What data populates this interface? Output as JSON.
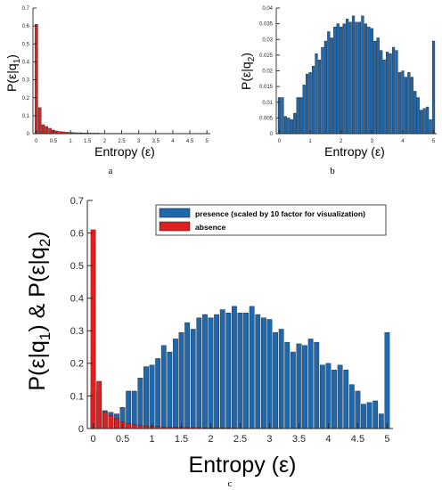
{
  "captions": [
    "a",
    "b",
    "c"
  ],
  "colors": {
    "presence": "#1f68ad",
    "absence": "#e02020",
    "axis": "#262626"
  },
  "chart_data": [
    {
      "type": "bar",
      "panel": "a",
      "xlabel": "Entropy (ε)",
      "ylabel": {
        "prefix": "P(ε|q",
        "sub": "1",
        "suffix": ")"
      },
      "xlim": [
        -0.1,
        5.1
      ],
      "ylim": [
        0,
        0.7
      ],
      "xticks": [
        0,
        0.5,
        1,
        1.5,
        2,
        2.5,
        3,
        3.5,
        4,
        4.5,
        5
      ],
      "xtick_labels": [
        "0",
        "0.5",
        "1",
        "1.5",
        "2",
        "2.5",
        "3",
        "3.5",
        "4",
        "4.5",
        "5"
      ],
      "yticks": [
        0,
        0.1,
        0.2,
        0.3,
        0.4,
        0.5,
        0.6,
        0.7
      ],
      "ytick_labels": [
        "0",
        "0.1",
        "0.2",
        "0.3",
        "0.4",
        "0.5",
        "0.6",
        "0.7"
      ],
      "series": [
        {
          "key": "absence",
          "x0": 0,
          "dx": 0.1,
          "values": [
            0.61,
            0.145,
            0.05,
            0.04,
            0.03,
            0.02,
            0.015,
            0.012,
            0.01,
            0.008,
            0.007,
            0.006,
            0.005,
            0.005,
            0.004,
            0.004,
            0.003,
            0.003,
            0.003,
            0.002,
            0.002,
            0.002,
            0.002,
            0.002,
            0.002,
            0.001,
            0.001,
            0.001,
            0.001,
            0.001,
            0.001,
            0.001,
            0.001,
            0.001,
            0.001,
            0.001,
            0.001,
            0.001,
            0.001,
            0.001,
            0.001,
            0.001,
            0.001,
            0.001,
            0.001,
            0.001,
            0.001,
            0.001,
            0.001,
            0.001,
            0.001
          ]
        }
      ]
    },
    {
      "type": "bar",
      "panel": "b",
      "xlabel": "Entropy (ε)",
      "ylabel": {
        "prefix": "P(ε|q",
        "sub": "2",
        "suffix": ")"
      },
      "xlim": [
        -0.1,
        5.1
      ],
      "ylim": [
        0,
        0.04
      ],
      "xticks": [
        0,
        1,
        2,
        3,
        4,
        5
      ],
      "xtick_labels": [
        "0",
        "1",
        "2",
        "3",
        "4",
        "5"
      ],
      "yticks": [
        0,
        0.005,
        0.01,
        0.015,
        0.02,
        0.025,
        0.03,
        0.035,
        0.04
      ],
      "ytick_labels": [
        "0",
        "0.005",
        "0.01",
        "0.015",
        "0.02",
        "0.025",
        "0.03",
        "0.035",
        "0.04"
      ],
      "series": [
        {
          "key": "presence",
          "x0": 0,
          "dx": 0.1,
          "values": [
            0.0115,
            0.0115,
            0.0055,
            0.005,
            0.0045,
            0.0065,
            0.0115,
            0.0115,
            0.0155,
            0.019,
            0.0195,
            0.0215,
            0.0255,
            0.0235,
            0.0275,
            0.0295,
            0.0325,
            0.0305,
            0.034,
            0.035,
            0.034,
            0.035,
            0.0365,
            0.0355,
            0.0375,
            0.0355,
            0.0355,
            0.0375,
            0.035,
            0.034,
            0.0335,
            0.0295,
            0.0305,
            0.0265,
            0.0235,
            0.026,
            0.0255,
            0.0275,
            0.0265,
            0.0195,
            0.02,
            0.018,
            0.0195,
            0.018,
            0.0135,
            0.0115,
            0.0075,
            0.008,
            0.0085,
            0.0045,
            0.0295
          ]
        }
      ]
    },
    {
      "type": "bar",
      "panel": "c",
      "xlabel": "Entropy (ε)",
      "ylabel": {
        "part1": "P(ε|q",
        "sub1": "1",
        "part2": ") & P(ε|q",
        "sub2": "2",
        "part3": ")"
      },
      "xlim": [
        -0.1,
        5.1
      ],
      "ylim": [
        0,
        0.7
      ],
      "xticks": [
        0,
        0.5,
        1,
        1.5,
        2,
        2.5,
        3,
        3.5,
        4,
        4.5,
        5
      ],
      "xtick_labels": [
        "0",
        "0.5",
        "1",
        "1.5",
        "2",
        "2.5",
        "3",
        "3.5",
        "4",
        "4.5",
        "5"
      ],
      "yticks": [
        0,
        0.1,
        0.2,
        0.3,
        0.4,
        0.5,
        0.6,
        0.7
      ],
      "ytick_labels": [
        "0",
        "0.1",
        "0.2",
        "0.3",
        "0.4",
        "0.5",
        "0.6",
        "0.7"
      ],
      "legend": {
        "position": "top-right",
        "entries": [
          {
            "key": "presence",
            "label": "presence (scaled by 10 factor for visualization)"
          },
          {
            "key": "absence",
            "label": "absence"
          }
        ]
      },
      "series": [
        {
          "key": "presence",
          "scale": 10,
          "source_panel": 1
        },
        {
          "key": "absence",
          "source_panel": 0
        }
      ]
    }
  ]
}
